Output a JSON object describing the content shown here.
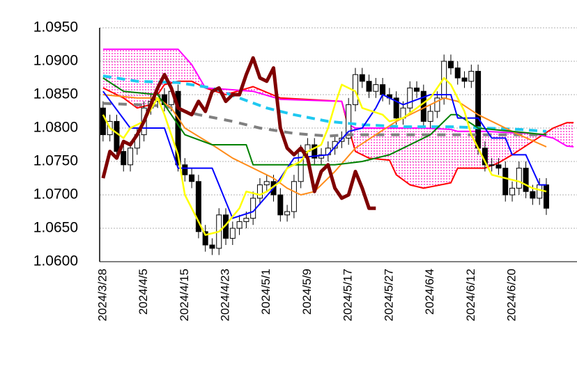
{
  "chart_data": {
    "type": "candlestick",
    "categories": [
      "2024/3/28",
      null,
      null,
      null,
      null,
      null,
      "2024/4/5",
      null,
      null,
      null,
      null,
      null,
      "2024/4/15",
      null,
      null,
      null,
      null,
      null,
      "2024/4/23",
      null,
      null,
      null,
      null,
      null,
      "2024/5/1",
      null,
      null,
      null,
      null,
      null,
      "2024/5/9",
      null,
      null,
      null,
      null,
      null,
      "2024/5/17",
      null,
      null,
      null,
      null,
      null,
      "2024/5/27",
      null,
      null,
      null,
      null,
      null,
      "2024/6/4",
      null,
      null,
      null,
      null,
      null,
      "2024/6/12",
      null,
      null,
      null,
      null,
      null,
      "2024/6/20",
      null,
      null,
      null,
      null,
      null,
      null,
      null,
      null,
      null
    ],
    "ylim": [
      1.06,
      1.095
    ],
    "yticks": [
      {
        "value": 1.06,
        "label": "1.0600"
      },
      {
        "value": 1.065,
        "label": "1.0650"
      },
      {
        "value": 1.07,
        "label": "1.0700"
      },
      {
        "value": 1.075,
        "label": "1.0750"
      },
      {
        "value": 1.08,
        "label": "1.0800"
      },
      {
        "value": 1.085,
        "label": "1.0850"
      },
      {
        "value": 1.09,
        "label": "1.0900"
      },
      {
        "value": 1.095,
        "label": "1.0950"
      }
    ],
    "grid": true,
    "cloud_color": "#ff3fcf",
    "candles": {
      "up_color": "#ffffff",
      "down_color": "#000000",
      "open": [
        1.083,
        1.079,
        1.081,
        1.0765,
        1.0745,
        1.077,
        1.079,
        1.083,
        1.084,
        1.085,
        1.0835,
        1.0855,
        1.0745,
        1.073,
        1.072,
        1.0645,
        1.0625,
        1.062,
        1.067,
        1.0635,
        1.065,
        1.066,
        1.0665,
        1.0695,
        1.0715,
        1.072,
        1.07,
        1.067,
        1.0675,
        1.072,
        1.0765,
        1.0775,
        1.0755,
        1.076,
        1.077,
        1.078,
        1.0785,
        1.0835,
        1.088,
        1.087,
        1.0855,
        1.0865,
        1.085,
        1.0845,
        1.0815,
        1.083,
        1.086,
        1.0855,
        1.081,
        1.0825,
        1.0845,
        1.09,
        1.089,
        1.0875,
        1.087,
        1.0885,
        1.077,
        1.0745,
        1.0745,
        1.074,
        1.07,
        1.071,
        1.074,
        1.0705,
        1.0695,
        1.0715
      ],
      "high": [
        1.084,
        1.082,
        1.082,
        1.0775,
        1.078,
        1.08,
        1.084,
        1.085,
        1.086,
        1.086,
        1.0865,
        1.0865,
        1.0755,
        1.074,
        1.073,
        1.0655,
        1.0635,
        1.068,
        1.068,
        1.066,
        1.067,
        1.0675,
        1.0705,
        1.0725,
        1.073,
        1.073,
        1.071,
        1.0685,
        1.073,
        1.0775,
        1.0785,
        1.0785,
        1.077,
        1.078,
        1.079,
        1.0795,
        1.0845,
        1.089,
        1.089,
        1.088,
        1.0875,
        1.0875,
        1.086,
        1.0855,
        1.084,
        1.087,
        1.087,
        1.0865,
        1.0835,
        1.0855,
        1.091,
        1.091,
        1.09,
        1.0885,
        1.0895,
        1.0895,
        1.078,
        1.0755,
        1.0755,
        1.075,
        1.072,
        1.075,
        1.075,
        1.0715,
        1.0725,
        1.0725
      ],
      "low": [
        1.078,
        1.078,
        1.0755,
        1.0735,
        1.0735,
        1.076,
        1.078,
        1.082,
        1.083,
        1.0825,
        1.0825,
        1.0735,
        1.072,
        1.071,
        1.0635,
        1.0615,
        1.061,
        1.061,
        1.0625,
        1.0625,
        1.064,
        1.065,
        1.0655,
        1.0685,
        1.0705,
        1.069,
        1.066,
        1.066,
        1.0665,
        1.071,
        1.0755,
        1.0745,
        1.0745,
        1.075,
        1.076,
        1.077,
        1.0775,
        1.0825,
        1.086,
        1.0845,
        1.0845,
        1.084,
        1.0835,
        1.0805,
        1.0805,
        1.082,
        1.0845,
        1.08,
        1.08,
        1.0815,
        1.0835,
        1.088,
        1.0865,
        1.086,
        1.086,
        1.076,
        1.0735,
        1.0735,
        1.073,
        1.069,
        1.069,
        1.07,
        1.0695,
        1.0685,
        1.0685,
        1.067
      ],
      "close": [
        1.079,
        1.081,
        1.0765,
        1.0745,
        1.077,
        1.079,
        1.083,
        1.084,
        1.085,
        1.0835,
        1.0855,
        1.0745,
        1.073,
        1.072,
        1.0645,
        1.0625,
        1.062,
        1.067,
        1.0635,
        1.065,
        1.066,
        1.0665,
        1.0695,
        1.0715,
        1.072,
        1.07,
        1.067,
        1.0675,
        1.072,
        1.0765,
        1.0775,
        1.0755,
        1.076,
        1.077,
        1.078,
        1.0785,
        1.0835,
        1.088,
        1.087,
        1.0855,
        1.0865,
        1.085,
        1.0845,
        1.0815,
        1.083,
        1.086,
        1.0855,
        1.081,
        1.0825,
        1.0845,
        1.09,
        1.089,
        1.0875,
        1.087,
        1.0885,
        1.077,
        1.0745,
        1.0745,
        1.074,
        1.07,
        1.071,
        1.074,
        1.0705,
        1.0695,
        1.0715,
        1.068
      ]
    },
    "series": [
      {
        "type": "line",
        "color": "#ff0000",
        "width": 2,
        "dash": "none",
        "x": [
          0,
          3,
          5,
          7,
          9,
          11,
          13,
          15,
          18,
          22,
          26,
          35,
          36,
          37,
          39,
          42,
          43,
          45,
          47,
          51,
          52,
          56,
          58,
          60,
          63,
          66,
          68,
          69
        ],
        "values": [
          1.086,
          1.0845,
          1.083,
          1.0835,
          1.0865,
          1.087,
          1.087,
          1.086,
          1.085,
          1.0862,
          1.0845,
          1.084,
          1.08,
          1.0765,
          1.0755,
          1.0752,
          1.073,
          1.0715,
          1.071,
          1.0718,
          1.074,
          1.074,
          1.0748,
          1.076,
          1.078,
          1.08,
          1.0808,
          1.0808
        ]
      },
      {
        "type": "line",
        "color": "#ff00ff",
        "width": 2,
        "dash": "none",
        "x": [
          0,
          3,
          5,
          7,
          9,
          11,
          13,
          15,
          18,
          22,
          26,
          35,
          36,
          37,
          39,
          42,
          43,
          45,
          47,
          51,
          52,
          56,
          58,
          60,
          63,
          66,
          68,
          69
        ],
        "values": [
          1.0918,
          1.0918,
          1.0918,
          1.0918,
          1.0918,
          1.0918,
          1.0895,
          1.086,
          1.0858,
          1.0855,
          1.0843,
          1.084,
          1.0805,
          1.08,
          1.08,
          1.08,
          1.08,
          1.08,
          1.08,
          1.0798,
          1.0795,
          1.0795,
          1.0794,
          1.0793,
          1.0792,
          1.0785,
          1.0773,
          1.0772
        ]
      },
      {
        "type": "line",
        "color": "#808080",
        "width": 4,
        "dash": "12 10",
        "x": [
          0,
          5,
          9,
          14,
          19,
          23,
          28,
          33,
          36,
          41,
          51,
          56,
          65
        ],
        "values": [
          1.0837,
          1.0835,
          1.0833,
          1.082,
          1.081,
          1.08,
          1.0792,
          1.0788,
          1.079,
          1.079,
          1.079,
          1.079,
          1.079
        ]
      },
      {
        "type": "line",
        "color": "#1ec8f0",
        "width": 4,
        "dash": "12 8",
        "x": [
          0,
          5,
          11,
          16,
          20,
          24,
          28,
          33,
          38,
          44,
          51,
          56,
          61,
          65
        ],
        "values": [
          1.0878,
          1.087,
          1.0868,
          1.086,
          1.0845,
          1.083,
          1.082,
          1.081,
          1.0805,
          1.0802,
          1.0802,
          1.08,
          1.0798,
          1.0795
        ]
      },
      {
        "type": "line",
        "color": "#ff8c1a",
        "width": 2,
        "dash": "none",
        "x": [
          0,
          5,
          8,
          10,
          12,
          16,
          19,
          22,
          25,
          27,
          29,
          31,
          34,
          37,
          40,
          43,
          46,
          50,
          52,
          55,
          58,
          61,
          65
        ],
        "values": [
          1.085,
          1.0845,
          1.0845,
          1.083,
          1.08,
          1.0775,
          1.0755,
          1.074,
          1.0725,
          1.071,
          1.07,
          1.0705,
          1.0735,
          1.077,
          1.079,
          1.081,
          1.0825,
          1.0845,
          1.084,
          1.082,
          1.0805,
          1.079,
          1.0772
        ]
      },
      {
        "type": "line",
        "color": "#008000",
        "width": 2,
        "dash": "none",
        "x": [
          0,
          3,
          8,
          10,
          12,
          16,
          21,
          22,
          34,
          38,
          42,
          44,
          48,
          51,
          52,
          55,
          65
        ],
        "values": [
          1.0875,
          1.0855,
          1.085,
          1.082,
          1.079,
          1.0775,
          1.0775,
          1.0745,
          1.0745,
          1.075,
          1.076,
          1.077,
          1.079,
          1.082,
          1.082,
          1.08,
          1.079
        ]
      },
      {
        "type": "line",
        "color": "#0000ff",
        "width": 2,
        "dash": "none",
        "x": [
          0,
          4,
          9,
          11,
          16,
          19,
          22,
          25,
          28,
          33,
          36,
          38,
          40,
          41,
          44,
          48,
          51,
          52,
          55,
          57,
          59,
          60,
          62,
          64,
          65
        ],
        "values": [
          1.0855,
          1.08,
          1.08,
          1.074,
          1.074,
          1.0665,
          1.0675,
          1.071,
          1.0755,
          1.076,
          1.0795,
          1.08,
          1.083,
          1.085,
          1.0835,
          1.085,
          1.085,
          1.0815,
          1.0815,
          1.0785,
          1.0785,
          1.076,
          1.076,
          1.0715,
          1.0715
        ]
      },
      {
        "type": "line",
        "color": "#ffff00",
        "width": 2.5,
        "dash": "none",
        "x": [
          0,
          1,
          3,
          4,
          6,
          8,
          9,
          11,
          12,
          14,
          15,
          17,
          18,
          20,
          21,
          23,
          24,
          26,
          27,
          29,
          30,
          32,
          33,
          34,
          35,
          37,
          38,
          41,
          42,
          44,
          46,
          48,
          50,
          51,
          53,
          54,
          56,
          57,
          59,
          61,
          63,
          65
        ],
        "values": [
          1.082,
          1.08,
          1.0785,
          1.08,
          1.081,
          1.0845,
          1.082,
          1.076,
          1.07,
          1.066,
          1.064,
          1.0645,
          1.0655,
          1.068,
          1.0705,
          1.07,
          1.0705,
          1.072,
          1.074,
          1.075,
          1.0765,
          1.0775,
          1.08,
          1.0835,
          1.0865,
          1.0855,
          1.083,
          1.082,
          1.081,
          1.0815,
          1.083,
          1.0845,
          1.0875,
          1.0865,
          1.0825,
          1.079,
          1.075,
          1.073,
          1.0725,
          1.072,
          1.071,
          1.0705
        ]
      },
      {
        "type": "line",
        "color": "#7f0000",
        "width": 5,
        "dash": "none",
        "x": [
          0,
          1,
          2,
          3,
          4,
          5,
          6,
          7,
          8,
          9,
          10,
          11,
          12,
          13,
          14,
          15,
          16,
          17,
          18,
          19,
          20,
          21,
          22,
          23,
          24,
          25,
          26,
          27,
          28,
          29,
          30,
          31,
          32,
          33,
          34,
          35,
          36,
          37,
          38,
          39,
          40
        ],
        "values": [
          1.0725,
          1.0765,
          1.0755,
          1.078,
          1.0775,
          1.079,
          1.081,
          1.0835,
          1.086,
          1.088,
          1.086,
          1.083,
          1.0825,
          1.082,
          1.084,
          1.0825,
          1.0855,
          1.086,
          1.084,
          1.085,
          1.085,
          1.088,
          1.0905,
          1.0875,
          1.087,
          1.089,
          1.08,
          1.077,
          1.076,
          1.077,
          1.0755,
          1.0705,
          1.0735,
          1.0745,
          1.071,
          1.0695,
          1.07,
          1.0735,
          1.071,
          1.068,
          1.068
        ]
      }
    ]
  }
}
